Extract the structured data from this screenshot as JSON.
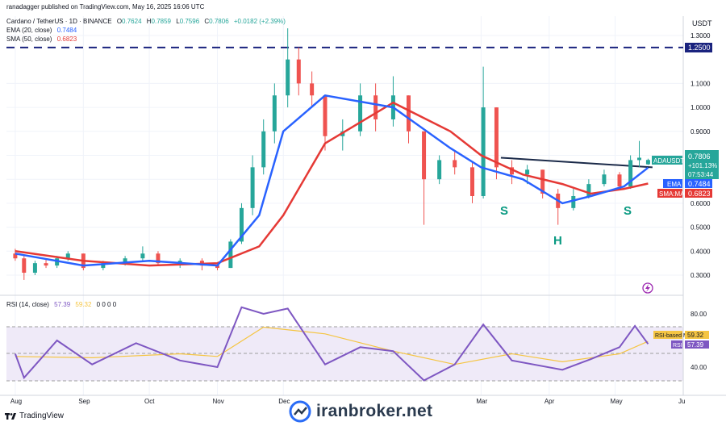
{
  "header": {
    "published": "ranadagger published on TradingView.com, May 16, 2025 16:06 UTC",
    "pair": "Cardano / TetherUS · 1D · BINANCE",
    "ohlc": [
      {
        "k": "O",
        "v": "0.7624"
      },
      {
        "k": "H",
        "v": "0.7859"
      },
      {
        "k": "L",
        "v": "0.7596"
      },
      {
        "k": "C",
        "v": "0.7806"
      },
      {
        "k": "",
        "v": "+0.0182 (+2.39%)"
      }
    ],
    "ema_label": "EMA (20, close)",
    "ema_value": "0.7484",
    "sma_label": "SMA (50, close)",
    "sma_value": "0.6823"
  },
  "axis_currency": "USDT",
  "price_axis_ticks": [
    "1.3000",
    "1.1000",
    "1.0000",
    "0.9000",
    "0.8000",
    "0.7000",
    "0.6000",
    "0.5000",
    "0.4000",
    "0.3000"
  ],
  "price_labels": {
    "resistance": "1.2500",
    "symbol": "ADAUSDT",
    "price": "0.7806",
    "change": "+101.13%",
    "countdown": "07:53:44",
    "ema_tag": "EMA",
    "ema_val": "0.7484",
    "sma_tag": "SMA:MA",
    "sma_val": "0.6823"
  },
  "pattern_labels": {
    "left_shoulder": "S",
    "head": "H",
    "right_shoulder": "S"
  },
  "rsi": {
    "label": "RSI (14, close)",
    "value": "57.39",
    "ma_value": "59.32",
    "zeros": "0 0 0 0",
    "ticks": [
      "80.00",
      "40.00"
    ],
    "ma_tag": "RSI-based MA",
    "rsi_tag": "RSI"
  },
  "time_axis": [
    "Aug",
    "Sep",
    "Oct",
    "Nov",
    "Dec",
    "Mar",
    "Apr",
    "May",
    "Ju"
  ],
  "footer": {
    "brand": "TradingView",
    "watermark": "iranbroker.net"
  },
  "colors": {
    "up": "#26a69a",
    "down": "#ef5350",
    "ema": "#2962ff",
    "sma": "#e53935",
    "rsi": "#7e57c2",
    "rsi_ma": "#f5c542",
    "neckline": "#1b2a49",
    "resistance": "#1a237e",
    "pattern_label": "#089981"
  },
  "chart_data": [
    {
      "type": "candlestick",
      "title": "Cardano / TetherUS · 1D · BINANCE",
      "ylim": [
        0.25,
        1.35
      ],
      "ylabel": "USDT",
      "series": [
        {
          "name": "EMA (20, close)",
          "x": [
            "2024-08-01",
            "2024-09-01",
            "2024-10-01",
            "2024-11-01",
            "2024-11-20",
            "2024-12-01",
            "2024-12-20",
            "2025-01-20",
            "2025-02-15",
            "2025-03-01",
            "2025-03-20",
            "2025-04-07",
            "2025-04-20",
            "2025-05-05",
            "2025-05-16"
          ],
          "values": [
            0.39,
            0.34,
            0.36,
            0.34,
            0.55,
            0.9,
            1.05,
            1.0,
            0.83,
            0.75,
            0.7,
            0.6,
            0.63,
            0.67,
            0.7484
          ]
        },
        {
          "name": "SMA (50, close)",
          "x": [
            "2024-08-01",
            "2024-09-01",
            "2024-10-01",
            "2024-11-01",
            "2024-11-20",
            "2024-12-01",
            "2024-12-20",
            "2025-01-20",
            "2025-02-15",
            "2025-03-01",
            "2025-03-20",
            "2025-04-07",
            "2025-04-20",
            "2025-05-05",
            "2025-05-16"
          ],
          "values": [
            0.4,
            0.36,
            0.34,
            0.35,
            0.42,
            0.55,
            0.85,
            1.02,
            0.9,
            0.8,
            0.72,
            0.68,
            0.64,
            0.66,
            0.6823
          ]
        }
      ],
      "candles": [
        {
          "x": "2024-08-01",
          "o": 0.39,
          "h": 0.41,
          "l": 0.36,
          "c": 0.37
        },
        {
          "x": "2024-08-05",
          "o": 0.37,
          "h": 0.38,
          "l": 0.28,
          "c": 0.31
        },
        {
          "x": "2024-08-10",
          "o": 0.31,
          "h": 0.36,
          "l": 0.3,
          "c": 0.35
        },
        {
          "x": "2024-08-15",
          "o": 0.35,
          "h": 0.37,
          "l": 0.33,
          "c": 0.34
        },
        {
          "x": "2024-08-20",
          "o": 0.34,
          "h": 0.38,
          "l": 0.33,
          "c": 0.37
        },
        {
          "x": "2024-08-25",
          "o": 0.37,
          "h": 0.4,
          "l": 0.36,
          "c": 0.39
        },
        {
          "x": "2024-09-01",
          "o": 0.39,
          "h": 0.39,
          "l": 0.32,
          "c": 0.33
        },
        {
          "x": "2024-09-10",
          "o": 0.33,
          "h": 0.36,
          "l": 0.32,
          "c": 0.35
        },
        {
          "x": "2024-09-20",
          "o": 0.35,
          "h": 0.38,
          "l": 0.34,
          "c": 0.37
        },
        {
          "x": "2024-09-28",
          "o": 0.37,
          "h": 0.42,
          "l": 0.36,
          "c": 0.39
        },
        {
          "x": "2024-10-05",
          "o": 0.39,
          "h": 0.4,
          "l": 0.34,
          "c": 0.35
        },
        {
          "x": "2024-10-15",
          "o": 0.35,
          "h": 0.37,
          "l": 0.33,
          "c": 0.36
        },
        {
          "x": "2024-10-25",
          "o": 0.36,
          "h": 0.37,
          "l": 0.32,
          "c": 0.34
        },
        {
          "x": "2024-11-01",
          "o": 0.34,
          "h": 0.35,
          "l": 0.32,
          "c": 0.33
        },
        {
          "x": "2024-11-07",
          "o": 0.33,
          "h": 0.45,
          "l": 0.33,
          "c": 0.44
        },
        {
          "x": "2024-11-12",
          "o": 0.44,
          "h": 0.6,
          "l": 0.43,
          "c": 0.58
        },
        {
          "x": "2024-11-17",
          "o": 0.58,
          "h": 0.8,
          "l": 0.55,
          "c": 0.75
        },
        {
          "x": "2024-11-22",
          "o": 0.75,
          "h": 0.95,
          "l": 0.72,
          "c": 0.9
        },
        {
          "x": "2024-11-27",
          "o": 0.9,
          "h": 1.1,
          "l": 0.85,
          "c": 1.05
        },
        {
          "x": "2024-12-03",
          "o": 1.05,
          "h": 1.33,
          "l": 1.0,
          "c": 1.2
        },
        {
          "x": "2024-12-08",
          "o": 1.2,
          "h": 1.25,
          "l": 1.05,
          "c": 1.1
        },
        {
          "x": "2024-12-14",
          "o": 1.1,
          "h": 1.15,
          "l": 1.0,
          "c": 1.05
        },
        {
          "x": "2024-12-20",
          "o": 1.05,
          "h": 1.05,
          "l": 0.82,
          "c": 0.88
        },
        {
          "x": "2024-12-28",
          "o": 0.88,
          "h": 0.95,
          "l": 0.82,
          "c": 0.9
        },
        {
          "x": "2025-01-05",
          "o": 0.9,
          "h": 1.1,
          "l": 0.88,
          "c": 1.05
        },
        {
          "x": "2025-01-12",
          "o": 1.05,
          "h": 1.1,
          "l": 0.9,
          "c": 0.95
        },
        {
          "x": "2025-01-20",
          "o": 0.95,
          "h": 1.13,
          "l": 0.92,
          "c": 1.05
        },
        {
          "x": "2025-01-27",
          "o": 1.05,
          "h": 1.05,
          "l": 0.85,
          "c": 0.9
        },
        {
          "x": "2025-02-03",
          "o": 0.9,
          "h": 0.9,
          "l": 0.51,
          "c": 0.7
        },
        {
          "x": "2025-02-10",
          "o": 0.7,
          "h": 0.8,
          "l": 0.68,
          "c": 0.78
        },
        {
          "x": "2025-02-17",
          "o": 0.78,
          "h": 0.82,
          "l": 0.72,
          "c": 0.75
        },
        {
          "x": "2025-02-25",
          "o": 0.75,
          "h": 0.77,
          "l": 0.6,
          "c": 0.63
        },
        {
          "x": "2025-03-02",
          "o": 0.63,
          "h": 1.17,
          "l": 0.62,
          "c": 1.0
        },
        {
          "x": "2025-03-08",
          "o": 1.0,
          "h": 1.0,
          "l": 0.7,
          "c": 0.75
        },
        {
          "x": "2025-03-15",
          "o": 0.75,
          "h": 0.78,
          "l": 0.68,
          "c": 0.72
        },
        {
          "x": "2025-03-22",
          "o": 0.72,
          "h": 0.76,
          "l": 0.68,
          "c": 0.74
        },
        {
          "x": "2025-03-29",
          "o": 0.74,
          "h": 0.74,
          "l": 0.62,
          "c": 0.64
        },
        {
          "x": "2025-04-05",
          "o": 0.64,
          "h": 0.66,
          "l": 0.51,
          "c": 0.58
        },
        {
          "x": "2025-04-12",
          "o": 0.58,
          "h": 0.66,
          "l": 0.57,
          "c": 0.63
        },
        {
          "x": "2025-04-19",
          "o": 0.63,
          "h": 0.7,
          "l": 0.62,
          "c": 0.68
        },
        {
          "x": "2025-04-26",
          "o": 0.68,
          "h": 0.74,
          "l": 0.67,
          "c": 0.72
        },
        {
          "x": "2025-05-03",
          "o": 0.72,
          "h": 0.73,
          "l": 0.66,
          "c": 0.67
        },
        {
          "x": "2025-05-08",
          "o": 0.67,
          "h": 0.8,
          "l": 0.66,
          "c": 0.78
        },
        {
          "x": "2025-05-12",
          "o": 0.78,
          "h": 0.86,
          "l": 0.75,
          "c": 0.79
        },
        {
          "x": "2025-05-16",
          "o": 0.7624,
          "h": 0.7859,
          "l": 0.7596,
          "c": 0.7806
        }
      ],
      "lines": [
        {
          "name": "resistance",
          "value": 1.25
        },
        {
          "name": "neckline",
          "from": {
            "x": "2025-03-10",
            "y": 0.79
          },
          "to": {
            "x": "2025-05-18",
            "y": 0.75
          }
        }
      ],
      "xlabel": ""
    },
    {
      "type": "line",
      "title": "RSI (14, close)",
      "ylim": [
        25,
        90
      ],
      "series": [
        {
          "name": "RSI",
          "x": [
            "2024-08-01",
            "2024-08-05",
            "2024-08-20",
            "2024-09-05",
            "2024-09-25",
            "2024-10-15",
            "2024-11-01",
            "2024-11-12",
            "2024-11-22",
            "2024-12-03",
            "2024-12-20",
            "2025-01-05",
            "2025-01-20",
            "2025-02-03",
            "2025-02-17",
            "2025-03-02",
            "2025-03-15",
            "2025-04-07",
            "2025-04-20",
            "2025-05-03",
            "2025-05-10",
            "2025-05-16"
          ],
          "values": [
            50,
            32,
            60,
            42,
            58,
            45,
            40,
            85,
            80,
            84,
            42,
            55,
            52,
            30,
            42,
            72,
            45,
            38,
            46,
            55,
            71,
            57.39
          ]
        },
        {
          "name": "RSI-based MA",
          "x": [
            "2024-08-01",
            "2024-09-05",
            "2024-10-15",
            "2024-11-01",
            "2024-11-22",
            "2024-12-20",
            "2025-01-20",
            "2025-02-17",
            "2025-03-15",
            "2025-04-07",
            "2025-05-03",
            "2025-05-16"
          ],
          "values": [
            48,
            47,
            50,
            48,
            70,
            65,
            52,
            42,
            50,
            44,
            50,
            59.32
          ]
        }
      ],
      "bands": [
        70,
        50,
        30
      ],
      "xlabel": "",
      "ylabel": ""
    }
  ]
}
